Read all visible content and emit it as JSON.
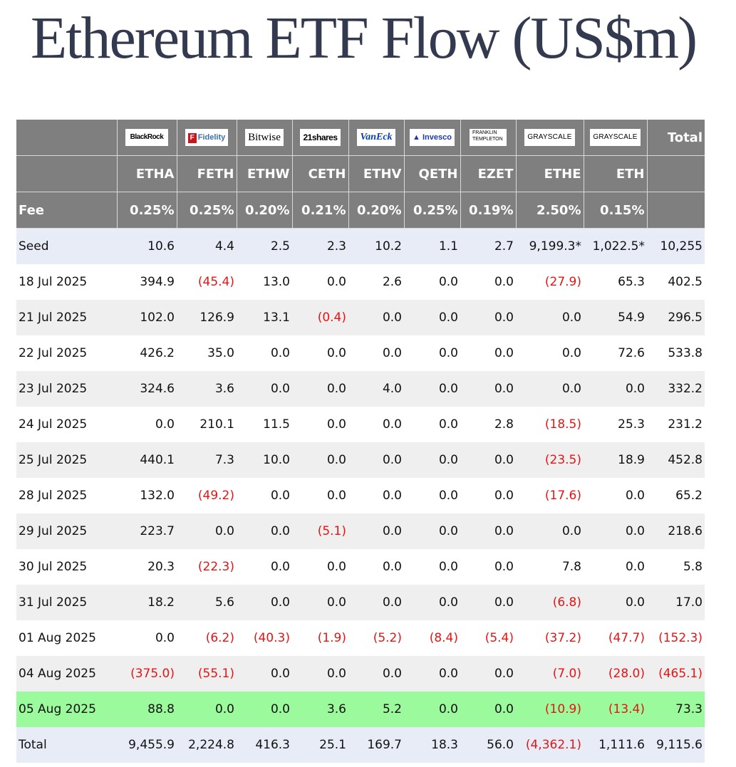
{
  "title": "Ethereum ETF Flow (US$m)",
  "issuers": [
    {
      "name": "BlackRock",
      "ticker": "ETHA",
      "fee": "0.25%"
    },
    {
      "name": "Fidelity",
      "ticker": "FETH",
      "fee": "0.25%"
    },
    {
      "name": "Bitwise",
      "ticker": "ETHW",
      "fee": "0.20%"
    },
    {
      "name": "21shares",
      "ticker": "CETH",
      "fee": "0.21%"
    },
    {
      "name": "VanEck",
      "ticker": "ETHV",
      "fee": "0.20%"
    },
    {
      "name": "Invesco",
      "ticker": "QETH",
      "fee": "0.25%"
    },
    {
      "name": "FRANKLIN TEMPLETON",
      "ticker": "EZET",
      "fee": "0.19%"
    },
    {
      "name": "GRAYSCALE",
      "ticker": "ETHE",
      "fee": "2.50%"
    },
    {
      "name": "GRAYSCALE",
      "ticker": "ETH",
      "fee": "0.15%"
    }
  ],
  "header": {
    "total_label": "Total",
    "fee_label": "Fee"
  },
  "colors": {
    "header_bg": "#7f7f7f",
    "negative": "#e41515",
    "highlight": "#9bfa9b",
    "seed_bg": "#e8ecf7",
    "stripe": "#efefef"
  },
  "chart_data": {
    "type": "table",
    "title": "Ethereum ETF Flow (US$m)",
    "columns": [
      "ETHA",
      "FETH",
      "ETHW",
      "CETH",
      "ETHV",
      "QETH",
      "EZET",
      "ETHE",
      "ETH",
      "Total"
    ],
    "rows": [
      {
        "label": "Seed",
        "values": [
          "10.6",
          "4.4",
          "2.5",
          "2.3",
          "10.2",
          "1.1",
          "2.7",
          "9,199.3*",
          "1,022.5*",
          "10,255"
        ]
      },
      {
        "label": "18 Jul 2025",
        "values": [
          "394.9",
          "(45.4)",
          "13.0",
          "0.0",
          "2.6",
          "0.0",
          "0.0",
          "(27.9)",
          "65.3",
          "402.5"
        ]
      },
      {
        "label": "21 Jul 2025",
        "values": [
          "102.0",
          "126.9",
          "13.1",
          "(0.4)",
          "0.0",
          "0.0",
          "0.0",
          "0.0",
          "54.9",
          "296.5"
        ]
      },
      {
        "label": "22 Jul 2025",
        "values": [
          "426.2",
          "35.0",
          "0.0",
          "0.0",
          "0.0",
          "0.0",
          "0.0",
          "0.0",
          "72.6",
          "533.8"
        ]
      },
      {
        "label": "23 Jul 2025",
        "values": [
          "324.6",
          "3.6",
          "0.0",
          "0.0",
          "4.0",
          "0.0",
          "0.0",
          "0.0",
          "0.0",
          "332.2"
        ]
      },
      {
        "label": "24 Jul 2025",
        "values": [
          "0.0",
          "210.1",
          "11.5",
          "0.0",
          "0.0",
          "0.0",
          "2.8",
          "(18.5)",
          "25.3",
          "231.2"
        ]
      },
      {
        "label": "25 Jul 2025",
        "values": [
          "440.1",
          "7.3",
          "10.0",
          "0.0",
          "0.0",
          "0.0",
          "0.0",
          "(23.5)",
          "18.9",
          "452.8"
        ]
      },
      {
        "label": "28 Jul 2025",
        "values": [
          "132.0",
          "(49.2)",
          "0.0",
          "0.0",
          "0.0",
          "0.0",
          "0.0",
          "(17.6)",
          "0.0",
          "65.2"
        ]
      },
      {
        "label": "29 Jul 2025",
        "values": [
          "223.7",
          "0.0",
          "0.0",
          "(5.1)",
          "0.0",
          "0.0",
          "0.0",
          "0.0",
          "0.0",
          "218.6"
        ]
      },
      {
        "label": "30 Jul 2025",
        "values": [
          "20.3",
          "(22.3)",
          "0.0",
          "0.0",
          "0.0",
          "0.0",
          "0.0",
          "7.8",
          "0.0",
          "5.8"
        ]
      },
      {
        "label": "31 Jul 2025",
        "values": [
          "18.2",
          "5.6",
          "0.0",
          "0.0",
          "0.0",
          "0.0",
          "0.0",
          "(6.8)",
          "0.0",
          "17.0"
        ]
      },
      {
        "label": "01 Aug 2025",
        "values": [
          "0.0",
          "(6.2)",
          "(40.3)",
          "(1.9)",
          "(5.2)",
          "(8.4)",
          "(5.4)",
          "(37.2)",
          "(47.7)",
          "(152.3)"
        ]
      },
      {
        "label": "04 Aug 2025",
        "values": [
          "(375.0)",
          "(55.1)",
          "0.0",
          "0.0",
          "0.0",
          "0.0",
          "0.0",
          "(7.0)",
          "(28.0)",
          "(465.1)"
        ]
      },
      {
        "label": "05 Aug 2025",
        "values": [
          "88.8",
          "0.0",
          "0.0",
          "3.6",
          "5.2",
          "0.0",
          "0.0",
          "(10.9)",
          "(13.4)",
          "73.3"
        ],
        "highlight": true
      },
      {
        "label": "Total",
        "values": [
          "9,455.9",
          "2,224.8",
          "416.3",
          "25.1",
          "169.7",
          "18.3",
          "56.0",
          "(4,362.1)",
          "1,111.6",
          "9,115.6"
        ]
      }
    ]
  }
}
